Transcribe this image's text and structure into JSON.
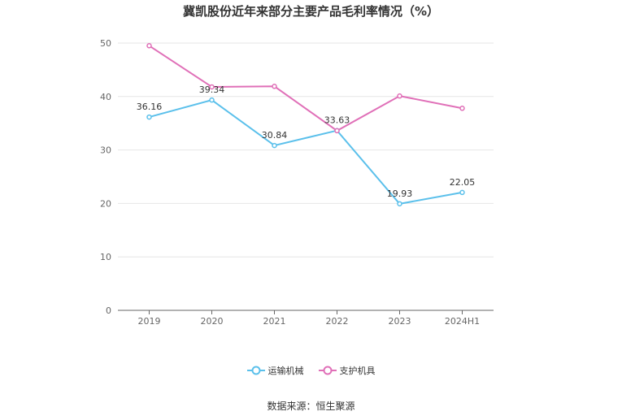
{
  "chart_data": {
    "type": "line",
    "title": "冀凯股份近年来部分主要产品毛利率情况（%）",
    "categories": [
      "2019",
      "2020",
      "2021",
      "2022",
      "2023",
      "2024H1"
    ],
    "ylim": [
      0,
      50
    ],
    "yticks": [
      0,
      10,
      20,
      30,
      40,
      50
    ],
    "grid": true,
    "legend_position": "bottom",
    "series": [
      {
        "name": "运输机械",
        "color": "#5bc0eb",
        "values": [
          36.16,
          39.34,
          30.84,
          33.63,
          19.93,
          22.05
        ],
        "labels": [
          "36.16",
          "39.34",
          "30.84",
          "33.63",
          "19.93",
          "22.05"
        ]
      },
      {
        "name": "支护机具",
        "color": "#e070b8",
        "values": [
          49.5,
          41.8,
          41.9,
          33.6,
          40.1,
          37.8
        ]
      }
    ],
    "source": "数据来源：恒生聚源"
  }
}
